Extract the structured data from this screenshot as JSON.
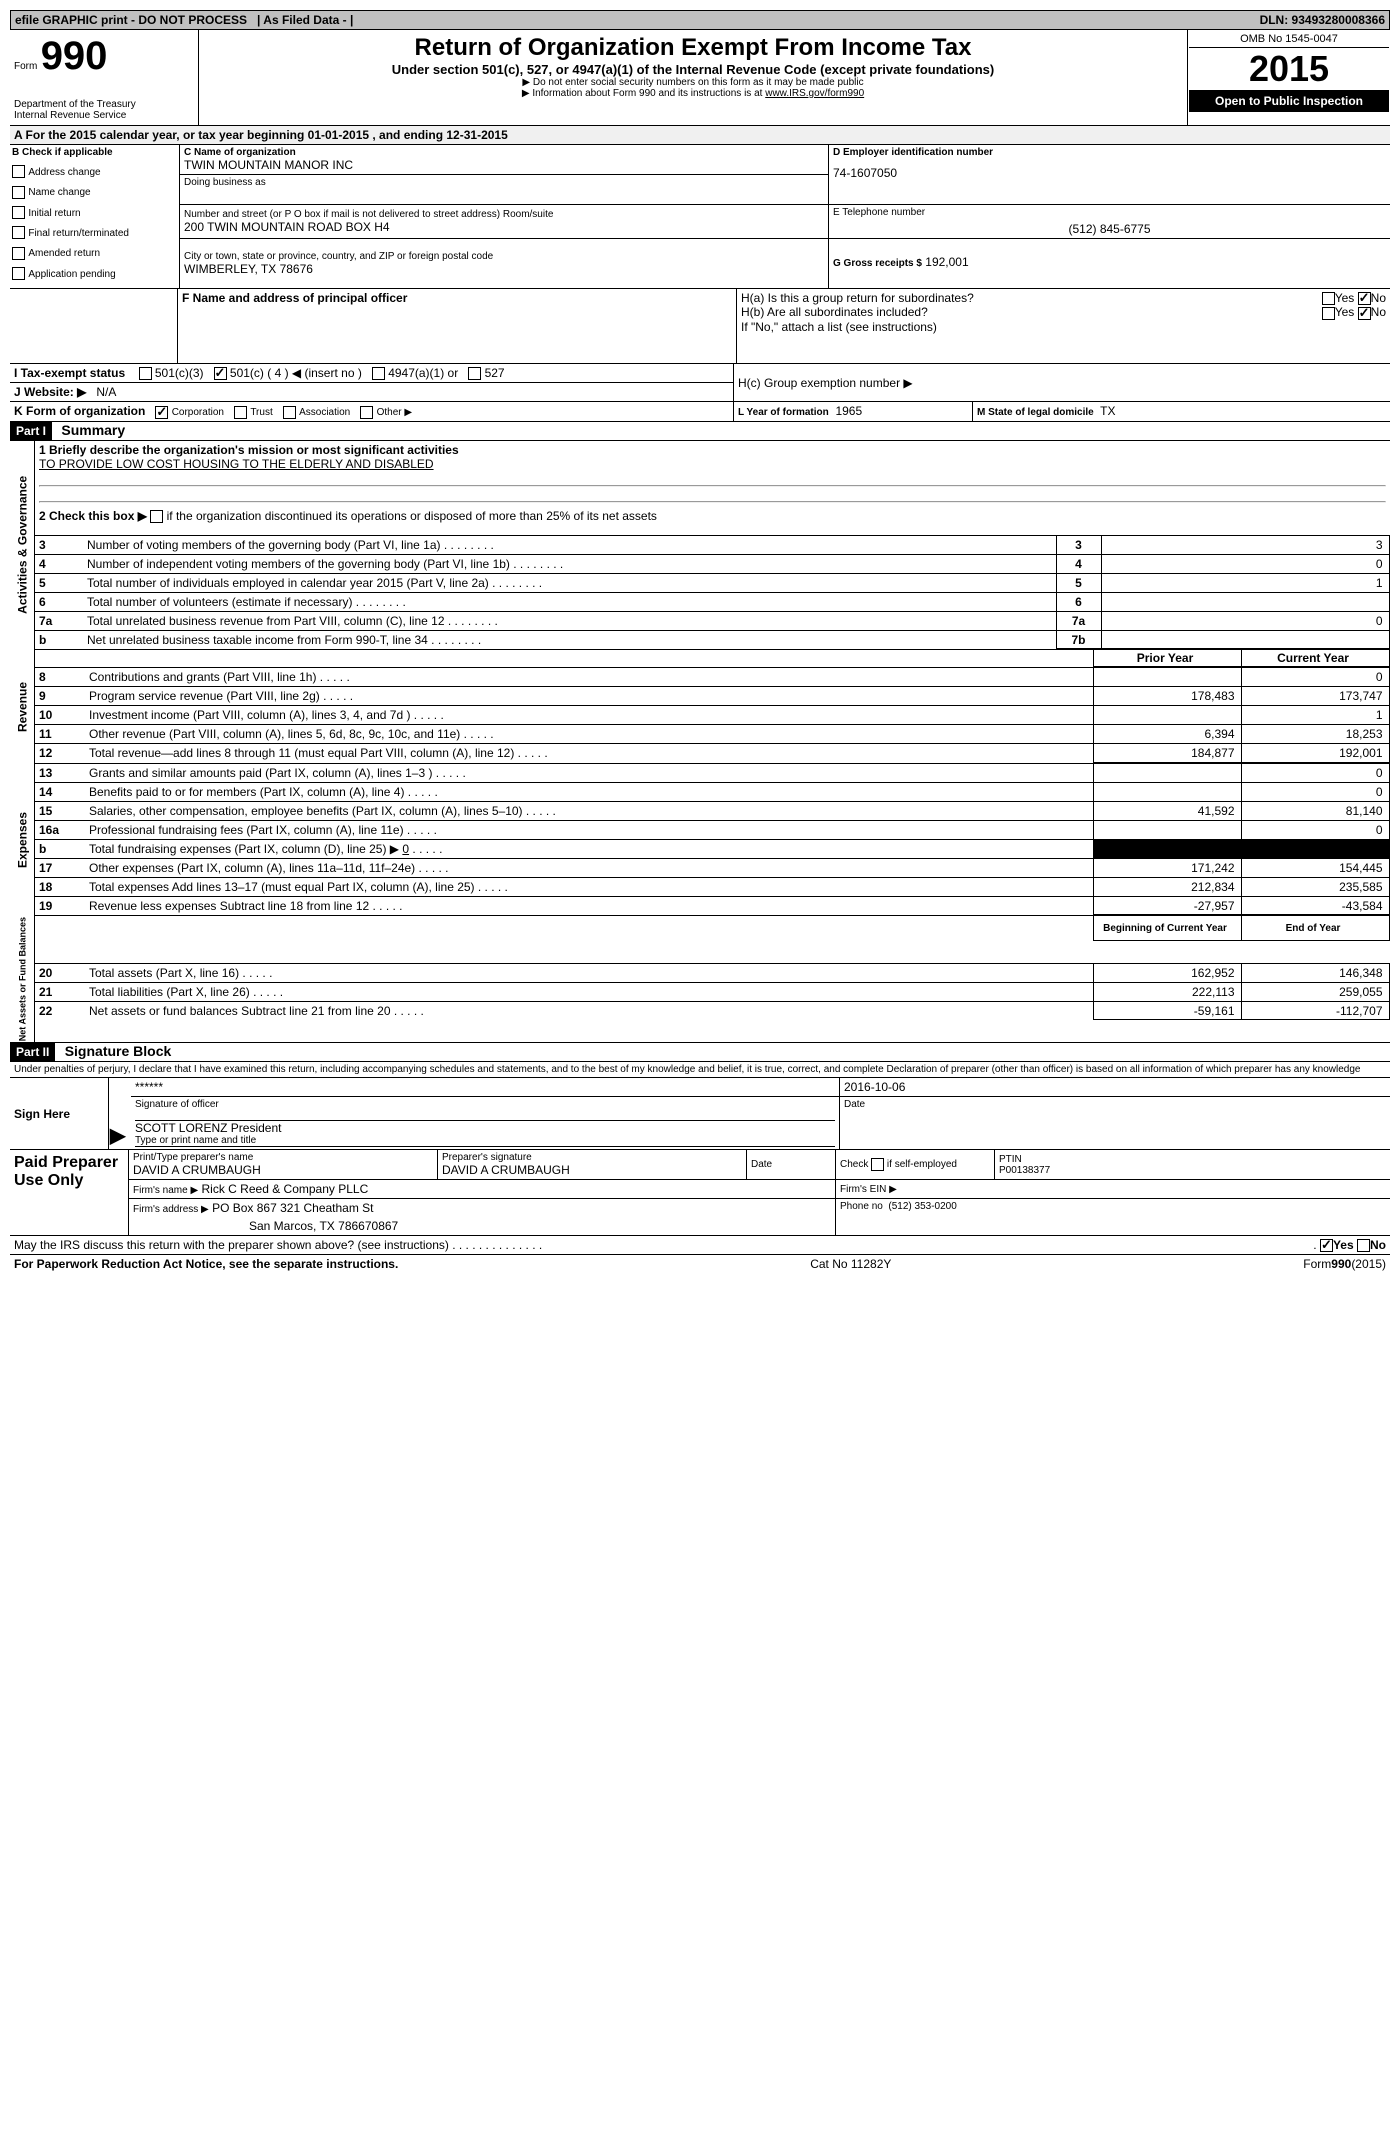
{
  "top_bar": {
    "left": "efile GRAPHIC print - DO NOT PROCESS",
    "mid": "As Filed Data -",
    "dln": "DLN: 93493280008366"
  },
  "header": {
    "form_label": "Form",
    "form_number": "990",
    "dept": "Department of the Treasury",
    "irs": "Internal Revenue Service",
    "title": "Return of Organization Exempt From Income Tax",
    "subtitle": "Under section 501(c), 527, or 4947(a)(1) of the Internal Revenue Code (except private foundations)",
    "note1": "▶ Do not enter social security numbers on this form as it may be made public",
    "note2": "▶ Information about Form 990 and its instructions is at",
    "note2_link": "www.IRS.gov/form990",
    "omb": "OMB No 1545-0047",
    "year": "2015",
    "open_public": "Open to Public Inspection"
  },
  "line_A": "A  For the 2015 calendar year, or tax year beginning 01-01-2015    , and ending 12-31-2015",
  "box_B": {
    "title": "B  Check if applicable",
    "items": [
      "Address change",
      "Name change",
      "Initial return",
      "Final return/terminated",
      "Amended return",
      "Application pending"
    ]
  },
  "box_C": {
    "label": "C Name of organization",
    "name": "TWIN MOUNTAIN MANOR INC",
    "dba_label": "Doing business as",
    "street_label": "Number and street (or P O  box if mail is not delivered to street address) Room/suite",
    "street": "200 TWIN MOUNTAIN ROAD BOX H4",
    "city_label": "City or town, state or province, country, and ZIP or foreign postal code",
    "city": "WIMBERLEY, TX  78676"
  },
  "box_D": {
    "label": "D Employer identification number",
    "value": "74-1607050"
  },
  "box_E": {
    "label": "E Telephone number",
    "value": "(512) 845-6775"
  },
  "box_G": {
    "label": "G Gross receipts $",
    "value": "192,001"
  },
  "box_F": "F    Name and address of principal officer",
  "box_H": {
    "ha": "H(a)  Is this a group return for subordinates?",
    "hb": "H(b)  Are all subordinates included?",
    "hb_note": "If \"No,\" attach a list  (see instructions)",
    "hc": "H(c)   Group exemption number ▶",
    "yes": "Yes",
    "no": "No"
  },
  "line_I": {
    "label": "I   Tax-exempt status",
    "opt1": "501(c)(3)",
    "opt2": "501(c) ( 4 ) ◀ (insert no )",
    "opt3": "4947(a)(1) or",
    "opt4": "527"
  },
  "line_J": {
    "label": "J  Website: ▶",
    "value": "N/A"
  },
  "line_K": {
    "label": "K Form of organization",
    "opts": [
      "Corporation",
      "Trust",
      "Association",
      "Other ▶"
    ]
  },
  "line_L": {
    "label": "L Year of formation",
    "value": "1965"
  },
  "line_M": {
    "label": "M State of legal domicile",
    "value": "TX"
  },
  "part1": {
    "header": "Part I",
    "title": "Summary",
    "q1": "1 Briefly describe the organization's mission or most significant activities",
    "q1_ans": "TO PROVIDE LOW COST HOUSING TO THE ELDERLY AND DISABLED",
    "q2": "2  Check this box ▶",
    "q2_rest": "if the organization discontinued its operations or disposed of more than 25% of its net assets",
    "rows_ag": [
      {
        "n": "3",
        "t": "Number of voting members of the governing body (Part VI, line 1a)",
        "box": "3",
        "v": "3"
      },
      {
        "n": "4",
        "t": "Number of independent voting members of the governing body (Part VI, line 1b)",
        "box": "4",
        "v": "0"
      },
      {
        "n": "5",
        "t": "Total number of individuals employed in calendar year 2015 (Part V, line 2a)",
        "box": "5",
        "v": "1"
      },
      {
        "n": "6",
        "t": "Total number of volunteers (estimate if necessary)",
        "box": "6",
        "v": ""
      },
      {
        "n": "7a",
        "t": "Total unrelated business revenue from Part VIII, column (C), line 12",
        "box": "7a",
        "v": "0"
      },
      {
        "n": "b",
        "t": "Net unrelated business taxable income from Form 990-T, line 34",
        "box": "7b",
        "v": ""
      }
    ],
    "col_prior": "Prior Year",
    "col_current": "Current Year",
    "revenue": [
      {
        "n": "8",
        "t": "Contributions and grants (Part VIII, line 1h)",
        "p": "",
        "c": "0"
      },
      {
        "n": "9",
        "t": "Program service revenue (Part VIII, line 2g)",
        "p": "178,483",
        "c": "173,747"
      },
      {
        "n": "10",
        "t": "Investment income (Part VIII, column (A), lines 3, 4, and 7d )",
        "p": "",
        "c": "1"
      },
      {
        "n": "11",
        "t": "Other revenue (Part VIII, column (A), lines 5, 6d, 8c, 9c, 10c, and 11e)",
        "p": "6,394",
        "c": "18,253"
      },
      {
        "n": "12",
        "t": "Total revenue—add lines 8 through 11 (must equal Part VIII, column (A), line 12)",
        "p": "184,877",
        "c": "192,001"
      }
    ],
    "expenses": [
      {
        "n": "13",
        "t": "Grants and similar amounts paid (Part IX, column (A), lines 1–3 )",
        "p": "",
        "c": "0"
      },
      {
        "n": "14",
        "t": "Benefits paid to or for members (Part IX, column (A), line 4)",
        "p": "",
        "c": "0"
      },
      {
        "n": "15",
        "t": "Salaries, other compensation, employee benefits (Part IX, column (A), lines 5–10)",
        "p": "41,592",
        "c": "81,140"
      },
      {
        "n": "16a",
        "t": "Professional fundraising fees (Part IX, column (A), line 11e)",
        "p": "",
        "c": "0"
      },
      {
        "n": "b",
        "t": "Total fundraising expenses (Part IX, column (D), line 25) ▶",
        "p": "SHADE",
        "c": "SHADE",
        "extra": "0"
      },
      {
        "n": "17",
        "t": "Other expenses (Part IX, column (A), lines 11a–11d, 11f–24e)",
        "p": "171,242",
        "c": "154,445"
      },
      {
        "n": "18",
        "t": "Total expenses  Add lines 13–17 (must equal Part IX, column (A), line 25)",
        "p": "212,834",
        "c": "235,585"
      },
      {
        "n": "19",
        "t": "Revenue less expenses  Subtract line 18 from line 12",
        "p": "-27,957",
        "c": "-43,584"
      }
    ],
    "col_begin": "Beginning of Current Year",
    "col_end": "End of Year",
    "netassets": [
      {
        "n": "20",
        "t": "Total assets (Part X, line 16)",
        "p": "162,952",
        "c": "146,348"
      },
      {
        "n": "21",
        "t": "Total liabilities (Part X, line 26)",
        "p": "222,113",
        "c": "259,055"
      },
      {
        "n": "22",
        "t": "Net assets or fund balances  Subtract line 21 from line 20",
        "p": "-59,161",
        "c": "-112,707"
      }
    ]
  },
  "part2": {
    "header": "Part II",
    "title": "Signature Block",
    "perjury": "Under penalties of perjury, I declare that I have examined this return, including accompanying schedules and statements, and to the best of my knowledge and belief, it is true, correct, and complete  Declaration of preparer (other than officer) is based on all information of which preparer has any knowledge",
    "sign_here": "Sign Here",
    "sig_stars": "******",
    "sig_officer_label": "Signature of officer",
    "sig_date": "2016-10-06",
    "date_label": "Date",
    "officer_name": "SCOTT LORENZ President",
    "officer_name_label": "Type or print name and title",
    "paid_prep": "Paid Preparer Use Only",
    "prep_name_label": "Print/Type preparer's name",
    "prep_name": "DAVID A CRUMBAUGH",
    "prep_sig_label": "Preparer's signature",
    "prep_sig": "DAVID A CRUMBAUGH",
    "prep_date_label": "Date",
    "check_self": "Check",
    "check_self2": "if self-employed",
    "ptin_label": "PTIN",
    "ptin": "P00138377",
    "firm_name_label": "Firm's name    ▶",
    "firm_name": "Rick C Reed & Company PLLC",
    "firm_ein_label": "Firm's EIN ▶",
    "firm_addr_label": "Firm's address ▶",
    "firm_addr": "PO Box 867 321 Cheatham St",
    "firm_addr2": "San Marcos, TX  786670867",
    "phone_label": "Phone no",
    "phone": "(512) 353-0200",
    "may_discuss": "May the IRS discuss this return with the preparer shown above? (see instructions)",
    "yes": "Yes",
    "no": "No"
  },
  "footer": {
    "left": "For Paperwork Reduction Act Notice, see the separate instructions.",
    "mid": "Cat No  11282Y",
    "right": "Form",
    "right2": "990",
    "right3": "(2015)"
  }
}
